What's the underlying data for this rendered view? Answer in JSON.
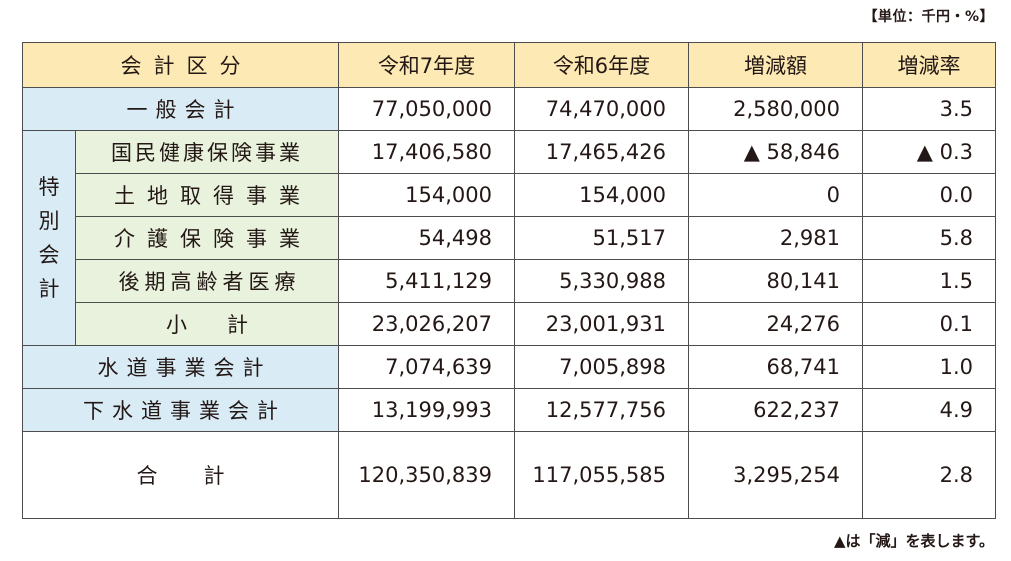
{
  "unit_label": "【単位：千円・%】",
  "note": "▲は「減」を表します。",
  "headers": {
    "category": "会計区分",
    "r7": "令和7年度",
    "r6": "令和6年度",
    "diff": "増減額",
    "rate": "増減率"
  },
  "special_label": [
    "特",
    "別",
    "会",
    "計"
  ],
  "rows": {
    "general": {
      "label": "一般会計",
      "r7": "77,050,000",
      "r6": "74,470,000",
      "diff": "2,580,000",
      "rate": "3.5"
    },
    "nhi": {
      "label": "国民健康保険事業",
      "r7": "17,406,580",
      "r6": "17,465,426",
      "diff": "▲ 58,846",
      "rate": "▲ 0.3"
    },
    "land": {
      "label": "土地取得事業",
      "r7": "154,000",
      "r6": "154,000",
      "diff": "0",
      "rate": "0.0"
    },
    "care": {
      "label": "介護保険事業",
      "r7": "54,498",
      "r6": "51,517",
      "diff": "2,981",
      "rate": "5.8"
    },
    "elderly": {
      "label": "後期高齢者医療",
      "r7": "5,411,129",
      "r6": "5,330,988",
      "diff": "80,141",
      "rate": "1.5"
    },
    "subtotal": {
      "label": "小計",
      "r7": "23,026,207",
      "r6": "23,001,931",
      "diff": "24,276",
      "rate": "0.1"
    },
    "water": {
      "label": "水道事業会計",
      "r7": "7,074,639",
      "r6": "7,005,898",
      "diff": "68,741",
      "rate": "1.0"
    },
    "sewer": {
      "label": "下水道事業会計",
      "r7": "13,199,993",
      "r6": "12,577,756",
      "diff": "622,237",
      "rate": "4.9"
    },
    "total": {
      "label": "合計",
      "r7": "120,350,839",
      "r6": "117,055,585",
      "diff": "3,295,254",
      "rate": "2.8"
    }
  }
}
